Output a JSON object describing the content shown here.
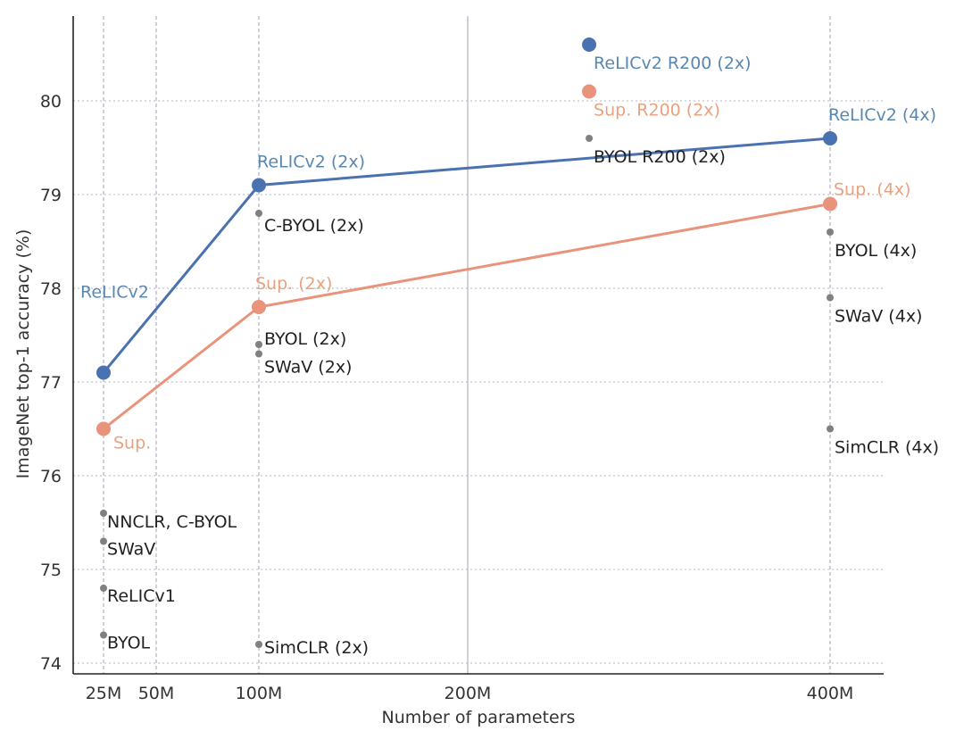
{
  "chart_data": {
    "type": "scatter",
    "xlabel": "Number of parameters",
    "ylabel": "ImageNet top-1 accuracy (%)",
    "ylim": [
      73.9,
      81.0
    ],
    "x_ticks": [
      {
        "value": 24,
        "label": "25M"
      },
      {
        "value": 50,
        "label": "50M"
      },
      {
        "value": 94,
        "label": "100M"
      },
      {
        "value": 187,
        "label": "200M"
      },
      {
        "value": 375,
        "label": "400M"
      }
    ],
    "y_ticks": [
      {
        "value": 74,
        "label": "74"
      },
      {
        "value": 75,
        "label": "75"
      },
      {
        "value": 76,
        "label": "76"
      },
      {
        "value": 77,
        "label": "77"
      },
      {
        "value": 78,
        "label": "78"
      },
      {
        "value": 79,
        "label": "79"
      },
      {
        "value": 80,
        "label": "80"
      }
    ],
    "grid": true,
    "colors": {
      "relic": "#4a72b0",
      "sup": "#e8937a",
      "other": "#808080",
      "relic_label": "#5a87b0",
      "sup_label": "#e8a27f",
      "other_label": "#222222"
    },
    "series": [
      {
        "key": "relic",
        "line": true,
        "points": [
          {
            "x": 24,
            "y": 77.1,
            "label": "ReLICv2",
            "pos": "above-left"
          },
          {
            "x": 94,
            "y": 79.1,
            "label": "ReLICv2 (2x)",
            "pos": "above"
          },
          {
            "x": 375,
            "y": 79.6,
            "label": "ReLICv2 (4x)",
            "pos": "above"
          }
        ]
      },
      {
        "key": "sup",
        "line": true,
        "points": [
          {
            "x": 24,
            "y": 76.5,
            "label": "Sup.",
            "pos": "below-right"
          },
          {
            "x": 94,
            "y": 77.8,
            "label": "Sup. (2x)",
            "pos": "above"
          },
          {
            "x": 375,
            "y": 78.9,
            "label": "Sup. (4x)",
            "pos": "above"
          }
        ]
      },
      {
        "key": "relic",
        "line": false,
        "points": [
          {
            "x": 250,
            "y": 80.6,
            "label": "ReLICv2 R200 (2x)",
            "pos": "below-right"
          }
        ]
      },
      {
        "key": "sup",
        "line": false,
        "points": [
          {
            "x": 250,
            "y": 80.1,
            "label": "Sup. R200 (2x)",
            "pos": "below-right"
          }
        ]
      },
      {
        "key": "other",
        "line": false,
        "points": [
          {
            "x": 24,
            "y": 75.6,
            "label": "NNCLR,  C-BYOL",
            "pos": "right"
          },
          {
            "x": 24,
            "y": 75.3,
            "label": "SWaV",
            "pos": "right"
          },
          {
            "x": 24,
            "y": 74.8,
            "label": "ReLICv1",
            "pos": "right"
          },
          {
            "x": 24,
            "y": 74.3,
            "label": "BYOL",
            "pos": "right"
          },
          {
            "x": 94,
            "y": 78.8,
            "label": "C-BYOL (2x)",
            "pos": "right"
          },
          {
            "x": 94,
            "y": 77.4,
            "label": "BYOL (2x)",
            "pos": "right"
          },
          {
            "x": 94,
            "y": 77.3,
            "label": "SWaV (2x)",
            "pos": "right"
          },
          {
            "x": 94,
            "y": 74.2,
            "label": "SimCLR (2x)",
            "pos": "right"
          },
          {
            "x": 250,
            "y": 79.6,
            "label": "BYOL R200 (2x)",
            "pos": "below-right"
          },
          {
            "x": 375,
            "y": 78.6,
            "label": "BYOL (4x)",
            "pos": "below-right"
          },
          {
            "x": 375,
            "y": 77.9,
            "label": "SWaV (4x)",
            "pos": "below-right"
          },
          {
            "x": 375,
            "y": 76.5,
            "label": "SimCLR (4x)",
            "pos": "below-right"
          }
        ]
      }
    ]
  }
}
